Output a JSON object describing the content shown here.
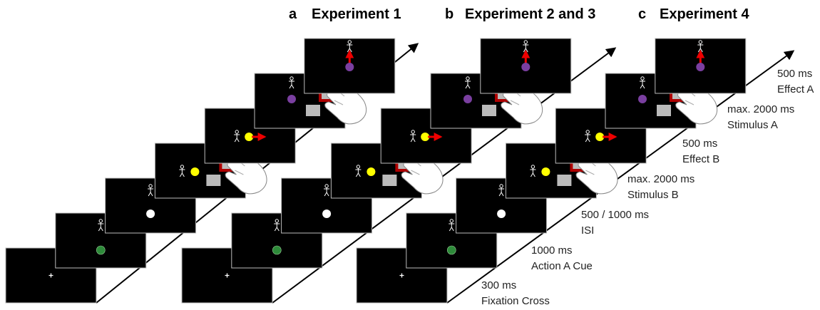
{
  "panels": [
    {
      "label": "a",
      "title": "Experiment 1"
    },
    {
      "label": "b",
      "title": "Experiment 2 and 3"
    },
    {
      "label": "c",
      "title": "Experiment 4"
    }
  ],
  "timeline": [
    {
      "duration": "300 ms",
      "event": "Fixation Cross"
    },
    {
      "duration": "1000 ms",
      "event": "Action A Cue"
    },
    {
      "duration": "500 / 1000 ms",
      "event": "ISI"
    },
    {
      "duration": "max. 2000 ms",
      "event": "Stimulus B"
    },
    {
      "duration": "500 ms",
      "event": "Effect B"
    },
    {
      "duration": "max. 2000 ms",
      "event": "Stimulus A"
    },
    {
      "duration": "500 ms",
      "event": "Effect A"
    }
  ]
}
